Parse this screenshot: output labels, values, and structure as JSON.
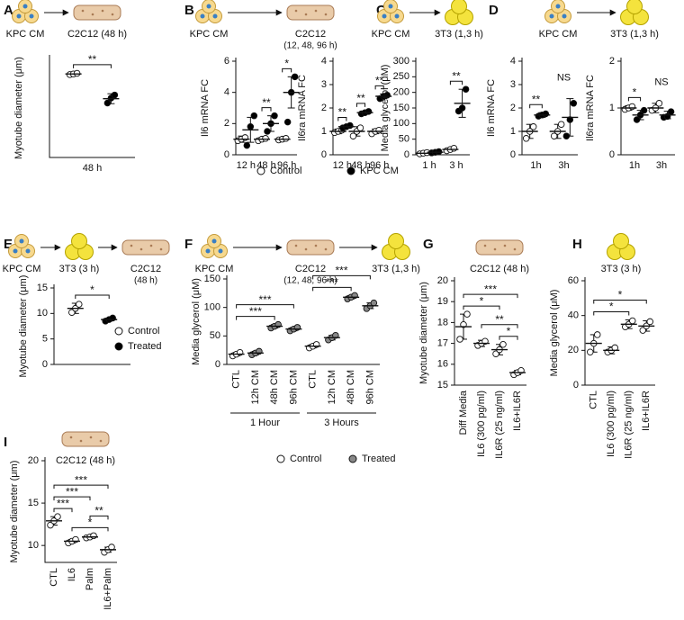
{
  "chart_data": [
    {
      "type": "dot",
      "panel": "A",
      "schematic": [
        {
          "label": "KPC CM"
        },
        {
          "label": "C2C12 (48 h)"
        }
      ],
      "ylabel": "Myotube diameter (μm)",
      "ylim": [
        0,
        16
      ],
      "categories": [
        "48 h"
      ],
      "series": [
        {
          "color": "white",
          "values": [
            13.5
          ],
          "errors": [
            0.2
          ],
          "points": [
            [
              13.4,
              13.5,
              13.6
            ]
          ]
        },
        {
          "color": "black",
          "values": [
            9.5
          ],
          "errors": [
            0.8
          ],
          "points": [
            [
              8.8,
              9.6,
              10.1
            ]
          ]
        }
      ],
      "annotations": [
        {
          "text": "**",
          "category": 0
        }
      ]
    },
    {
      "type": "dot",
      "panel": "B",
      "schematic": [
        {
          "label": "KPC CM"
        },
        {
          "label": "C2C12",
          "note": "(12, 48, 96 h)"
        }
      ],
      "ylabel": "Il6 mRNA FC",
      "ylim": [
        0,
        6
      ],
      "yticks": [
        0,
        2,
        4,
        6
      ],
      "categories": [
        "12 h",
        "48 h",
        "96 h"
      ],
      "legend": true,
      "series": [
        {
          "name": "Control",
          "color": "white",
          "values": [
            1,
            1,
            1
          ],
          "errors": [
            0.2,
            0.1,
            0.1
          ],
          "points": [
            [
              0.9,
              1,
              1.1
            ],
            [
              0.9,
              1,
              1.05
            ],
            [
              0.95,
              1,
              1.05
            ]
          ]
        },
        {
          "name": "KPC CM",
          "color": "black",
          "values": [
            1.6,
            2,
            4
          ],
          "errors": [
            0.8,
            0.5,
            1
          ],
          "points": [
            [
              0.6,
              1.8,
              2.5
            ],
            [
              1.5,
              2,
              2.5
            ],
            [
              2.1,
              4,
              5
            ]
          ]
        }
      ],
      "annotations": [
        {
          "text": "**",
          "category": 1
        },
        {
          "text": "*",
          "category": 2
        }
      ]
    },
    {
      "type": "dot",
      "ylabel": "Il6ra mRNA FC",
      "ylim": [
        0,
        4
      ],
      "yticks": [
        0,
        1,
        2,
        3,
        4
      ],
      "categories": [
        "12 h",
        "48 h",
        "96 h"
      ],
      "series": [
        {
          "color": "white",
          "values": [
            1,
            1,
            1
          ],
          "errors": [
            0.1,
            0.2,
            0.1
          ],
          "points": [
            [
              0.95,
              1,
              1.05
            ],
            [
              0.8,
              1,
              1.15
            ],
            [
              0.9,
              1,
              1.05
            ]
          ]
        },
        {
          "color": "black",
          "values": [
            1.2,
            1.8,
            2.5
          ],
          "errors": [
            0.05,
            0.05,
            0.1
          ],
          "points": [
            [
              1.15,
              1.2,
              1.25
            ],
            [
              1.75,
              1.8,
              1.85
            ],
            [
              2.4,
              2.5,
              2.55
            ]
          ]
        }
      ],
      "annotations": [
        {
          "text": "**",
          "category": 0
        },
        {
          "text": "**",
          "category": 1
        },
        {
          "text": "**",
          "category": 2
        }
      ]
    },
    {
      "type": "dot",
      "panel": "C",
      "schematic": [
        {
          "label": "KPC CM"
        },
        {
          "label": "3T3 (1,3 h)"
        }
      ],
      "ylabel": "Media glycerol (μM)",
      "ylim": [
        0,
        300
      ],
      "yticks": [
        0,
        50,
        100,
        150,
        200,
        250,
        300
      ],
      "categories": [
        "1 h",
        "3 h"
      ],
      "series": [
        {
          "color": "white",
          "values": [
            5,
            17
          ],
          "errors": [
            3,
            5
          ],
          "points": [
            [
              3,
              5,
              7
            ],
            [
              13,
              17,
              21
            ]
          ]
        },
        {
          "color": "black",
          "values": [
            8,
            165
          ],
          "errors": [
            3,
            45
          ],
          "points": [
            [
              6,
              8,
              10
            ],
            [
              140,
              150,
              210
            ]
          ]
        }
      ],
      "annotations": [
        {
          "text": "**",
          "category": 1
        }
      ]
    },
    {
      "type": "dot",
      "panel": "D",
      "schematic": [
        {
          "label": "KPC CM"
        },
        {
          "label": "3T3 (1,3 h)"
        }
      ],
      "ylabel": "Il6 mRNA FC",
      "ylim": [
        0,
        4
      ],
      "yticks": [
        0,
        1,
        2,
        3,
        4
      ],
      "categories": [
        "1h",
        "3h"
      ],
      "series": [
        {
          "color": "white",
          "values": [
            1,
            1
          ],
          "errors": [
            0.3,
            0.3
          ],
          "points": [
            [
              0.7,
              1,
              1.2
            ],
            [
              0.8,
              1,
              1.3
            ]
          ]
        },
        {
          "color": "black",
          "values": [
            1.7,
            1.6
          ],
          "errors": [
            0.1,
            0.8
          ],
          "points": [
            [
              1.65,
              1.7,
              1.75
            ],
            [
              0.8,
              1.5,
              2.2
            ]
          ]
        }
      ],
      "annotations": [
        {
          "text": "**",
          "category": 0
        },
        {
          "text": "NS",
          "category": 1,
          "bracket": false
        }
      ]
    },
    {
      "type": "dot",
      "ylabel": "Il6ra mRNA FC",
      "ylim": [
        0,
        2
      ],
      "yticks": [
        0,
        1,
        2
      ],
      "categories": [
        "1h",
        "3h"
      ],
      "series": [
        {
          "color": "white",
          "values": [
            1,
            1
          ],
          "errors": [
            0.05,
            0.1
          ],
          "points": [
            [
              0.97,
              1,
              1.03
            ],
            [
              0.95,
              1,
              1.1
            ]
          ]
        },
        {
          "color": "black",
          "values": [
            0.85,
            0.85
          ],
          "errors": [
            0.1,
            0.08
          ],
          "points": [
            [
              0.75,
              0.85,
              0.95
            ],
            [
              0.8,
              0.82,
              0.92
            ]
          ]
        }
      ],
      "annotations": [
        {
          "text": "*",
          "category": 0
        },
        {
          "text": "NS",
          "category": 1,
          "bracket": false
        }
      ]
    },
    {
      "type": "dot",
      "panel": "E",
      "schematic": [
        {
          "label": "KPC CM"
        },
        {
          "label": "3T3 (3 h)"
        },
        {
          "label": "C2C12",
          "note": "(48 h)"
        }
      ],
      "ylabel": "Myotube diameter (μm)",
      "ylim": [
        0,
        15
      ],
      "yticks": [
        0,
        5,
        10,
        15
      ],
      "categories": [
        null
      ],
      "legend": true,
      "series": [
        {
          "name": "Control",
          "color": "white",
          "values": [
            11
          ],
          "errors": [
            1
          ],
          "points": [
            [
              10.2,
              11,
              11.8
            ]
          ]
        },
        {
          "name": "Treated",
          "color": "black",
          "values": [
            8.8
          ],
          "errors": [
            0.3
          ],
          "points": [
            [
              8.5,
              8.8,
              9.1
            ]
          ]
        }
      ],
      "annotations": [
        {
          "text": "*",
          "category": 0
        }
      ]
    },
    {
      "type": "dot",
      "panel": "F",
      "schematic": [
        {
          "label": "KPC CM"
        },
        {
          "label": "C2C12",
          "note": "(12, 48, 96 h)"
        },
        {
          "label": "3T3 (1,3 h)"
        }
      ],
      "ylabel": "Media glycerol (μM)",
      "ylim": [
        0,
        150
      ],
      "yticks": [
        0,
        50,
        100,
        150
      ],
      "categories": [
        "CTL",
        "12h CM",
        "48h CM",
        "96h CM",
        "CTL",
        "12h CM",
        "48h CM",
        "96h CM"
      ],
      "groups": [
        "1 Hour",
        "3 Hours"
      ],
      "legend": true,
      "series": [
        {
          "name": "Control",
          "color": "white",
          "values": [
            18,
            null,
            null,
            null,
            32,
            null,
            null,
            null
          ],
          "errors": [
            3,
            null,
            null,
            null,
            3,
            null,
            null,
            null
          ],
          "points": [
            [
              15,
              18,
              21
            ],
            null,
            null,
            null,
            [
              29,
              32,
              35
            ],
            null,
            null,
            null
          ]
        },
        {
          "name": "Treated",
          "color": "#888888",
          "values": [
            null,
            20,
            67,
            62,
            null,
            47,
            118,
            103
          ],
          "errors": [
            null,
            3,
            3,
            3,
            null,
            4,
            3,
            5
          ],
          "points": [
            null,
            [
              17,
              20,
              23
            ],
            [
              64,
              67,
              70
            ],
            [
              59,
              62,
              65
            ],
            null,
            [
              43,
              47,
              51
            ],
            [
              115,
              118,
              121
            ],
            [
              98,
              103,
              108
            ]
          ]
        }
      ],
      "annotations": [
        {
          "text": "***",
          "between": [
            0,
            2
          ]
        },
        {
          "text": "***",
          "between": [
            0,
            3
          ]
        },
        {
          "text": "***",
          "between": [
            4,
            6
          ]
        },
        {
          "text": "***",
          "between": [
            4,
            7
          ]
        }
      ]
    },
    {
      "type": "dot",
      "panel": "G",
      "schematic": [
        {
          "label": "C2C12 (48 h)"
        }
      ],
      "ylabel": "Myotube diameter (μm)",
      "ylim": [
        15,
        20
      ],
      "yticks": [
        15,
        16,
        17,
        18,
        19,
        20
      ],
      "categories": [
        "Diff Media",
        "IL6 (300 pg/ml)",
        "IL6R (25 ng/ml)",
        "IL6+IL6R"
      ],
      "series": [
        {
          "color": "white",
          "values": [
            17.8,
            17,
            16.7,
            15.6
          ],
          "errors": [
            0.6,
            0.15,
            0.25,
            0.1
          ],
          "points": [
            [
              17.2,
              17.9,
              18.4
            ],
            [
              16.9,
              17,
              17.1
            ],
            [
              16.5,
              16.7,
              16.95
            ],
            [
              15.5,
              15.6,
              15.7
            ]
          ]
        }
      ],
      "annotations": [
        {
          "text": "*",
          "between": [
            2,
            3
          ]
        },
        {
          "text": "**",
          "between": [
            1,
            3
          ]
        },
        {
          "text": "*",
          "between": [
            0,
            2
          ]
        },
        {
          "text": "***",
          "between": [
            0,
            3
          ]
        }
      ]
    },
    {
      "type": "dot",
      "panel": "H",
      "schematic": [
        {
          "label": "3T3 (3 h)"
        }
      ],
      "ylabel": "Media glycerol (μM)",
      "ylim": [
        0,
        60
      ],
      "yticks": [
        0,
        20,
        40,
        60
      ],
      "categories": [
        "CTL",
        "IL6 (300 pg/ml)",
        "IL6R (25 ng/ml)",
        "IL6+IL6R"
      ],
      "series": [
        {
          "color": "white",
          "values": [
            24,
            20,
            35,
            34
          ],
          "errors": [
            5,
            2,
            2.5,
            3
          ],
          "points": [
            [
              19,
              24,
              29
            ],
            [
              19,
              20,
              21.5
            ],
            [
              33.5,
              35,
              37
            ],
            [
              31.5,
              34,
              36.5
            ]
          ]
        }
      ],
      "annotations": [
        {
          "text": "*",
          "between": [
            0,
            2
          ]
        },
        {
          "text": "*",
          "between": [
            0,
            3
          ]
        }
      ]
    },
    {
      "type": "dot",
      "panel": "I",
      "schematic": [
        {
          "label": "C2C12 (48 h)"
        }
      ],
      "ylabel": "Myotube diameter (μm)",
      "ylim": [
        8,
        20
      ],
      "yticks": [
        10,
        15,
        20
      ],
      "categories": [
        "CTL",
        "IL6",
        "Palm",
        "IL6+Palm"
      ],
      "series": [
        {
          "color": "white",
          "values": [
            12.9,
            10.5,
            11,
            9.5
          ],
          "errors": [
            0.5,
            0.2,
            0.15,
            0.3
          ],
          "points": [
            [
              12.4,
              12.9,
              13.4
            ],
            [
              10.3,
              10.5,
              10.7
            ],
            [
              10.9,
              11,
              11.15
            ],
            [
              9.2,
              9.5,
              9.8
            ]
          ]
        }
      ],
      "annotations": [
        {
          "text": "*",
          "between": [
            1,
            3
          ]
        },
        {
          "text": "**",
          "between": [
            2,
            3
          ]
        },
        {
          "text": "***",
          "between": [
            0,
            1
          ]
        },
        {
          "text": "***",
          "between": [
            0,
            2
          ]
        },
        {
          "text": "***",
          "between": [
            0,
            3
          ]
        }
      ]
    }
  ]
}
